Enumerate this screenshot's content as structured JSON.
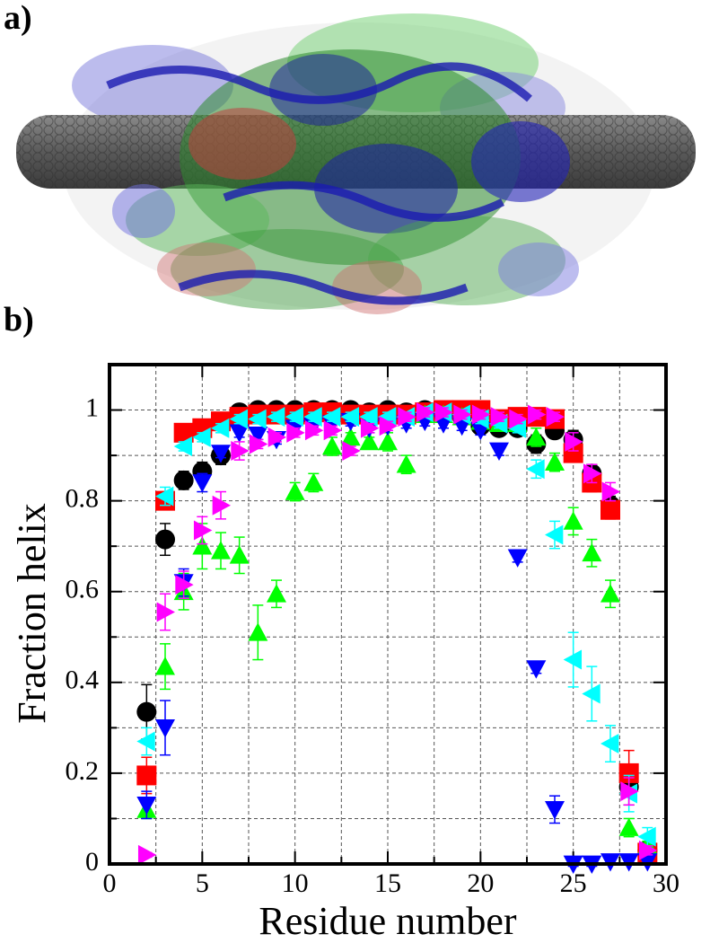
{
  "panel_a": {
    "label": "a)"
  },
  "chart_data": {
    "type": "scatter",
    "panel_label": "b)",
    "x_label": "Residue number",
    "y_label": "Fraction helix",
    "xlim": [
      0,
      30
    ],
    "ylim": [
      0,
      1.1
    ],
    "xticks": [
      0,
      5,
      10,
      15,
      20,
      25,
      30
    ],
    "yticks": [
      0,
      0.2,
      0.4,
      0.6,
      0.8,
      1
    ],
    "x_grid": [
      2.5,
      7.5,
      12.5,
      17.5,
      22.5,
      27.5
    ],
    "y_grid": [
      0.1,
      0.3,
      0.5,
      0.7,
      0.9
    ],
    "grid": true,
    "x": [
      2,
      3,
      4,
      5,
      6,
      7,
      8,
      9,
      10,
      11,
      12,
      13,
      14,
      15,
      16,
      17,
      18,
      19,
      20,
      21,
      22,
      23,
      24,
      25,
      26,
      27,
      28,
      29
    ],
    "series": [
      {
        "color": "#000000",
        "marker": "circle",
        "values": [
          0.335,
          0.715,
          0.845,
          0.865,
          0.9,
          0.995,
          1.0,
          1.0,
          1.0,
          1.0,
          1.0,
          1.0,
          0.995,
          1.0,
          0.995,
          1.0,
          0.99,
          0.985,
          0.965,
          0.96,
          0.96,
          0.925,
          0.955,
          0.935,
          0.86,
          0.79,
          0.17,
          0.03
        ],
        "errors": [
          0.06,
          0.035,
          0.02,
          0.02,
          0.02,
          0.01,
          0.005,
          0.005,
          0.005,
          0.005,
          0.005,
          0.005,
          0.005,
          0.005,
          0.005,
          0.005,
          0.01,
          0.01,
          0.01,
          0.01,
          0.01,
          0.02,
          0.015,
          0.02,
          0.02,
          0.02,
          0.04,
          0.015
        ]
      },
      {
        "color": "#ff0000",
        "marker": "square",
        "values": [
          0.195,
          0.8,
          0.95,
          0.96,
          0.975,
          0.985,
          0.99,
          0.99,
          0.99,
          0.995,
          0.995,
          0.99,
          0.99,
          0.99,
          0.99,
          0.995,
          1.0,
          1.0,
          1.0,
          0.98,
          0.985,
          0.985,
          0.98,
          0.905,
          0.84,
          0.78,
          0.2,
          0.025
        ],
        "errors": [
          0.04,
          0.02,
          0.01,
          0.01,
          0.01,
          0.01,
          0.005,
          0.005,
          0.005,
          0.005,
          0.005,
          0.005,
          0.005,
          0.005,
          0.005,
          0.005,
          0.005,
          0.005,
          0.005,
          0.01,
          0.01,
          0.01,
          0.01,
          0.02,
          0.02,
          0.02,
          0.05,
          0.015
        ]
      },
      {
        "color": "#00ff00",
        "marker": "triangle-up",
        "values": [
          0.12,
          0.435,
          0.6,
          0.7,
          0.69,
          0.68,
          0.51,
          0.595,
          0.82,
          0.84,
          0.92,
          0.94,
          0.93,
          0.93,
          0.88,
          0.99,
          0.99,
          0.985,
          0.975,
          0.97,
          0.97,
          0.94,
          0.885,
          0.755,
          0.685,
          0.595,
          0.08,
          0.04
        ],
        "errors": [
          0.02,
          0.05,
          0.04,
          0.05,
          0.04,
          0.04,
          0.06,
          0.03,
          0.02,
          0.02,
          0.02,
          0.01,
          0.01,
          0.02,
          0.02,
          0.01,
          0.01,
          0.01,
          0.01,
          0.01,
          0.01,
          0.02,
          0.02,
          0.03,
          0.03,
          0.03,
          0.02,
          0.01
        ]
      },
      {
        "color": "#0000ff",
        "marker": "triangle-down",
        "values": [
          0.13,
          0.3,
          0.62,
          0.84,
          0.905,
          0.95,
          0.945,
          0.935,
          0.96,
          0.965,
          0.97,
          0.975,
          0.96,
          0.965,
          0.97,
          0.975,
          0.97,
          0.965,
          0.955,
          0.91,
          0.675,
          0.43,
          0.12,
          0.0,
          0.0,
          0.005,
          0.005,
          0.005
        ],
        "errors": [
          0.03,
          0.06,
          0.03,
          0.02,
          0.01,
          0.01,
          0.01,
          0.01,
          0.01,
          0.01,
          0.01,
          0.01,
          0.01,
          0.01,
          0.01,
          0.01,
          0.01,
          0.01,
          0.01,
          0.01,
          0.01,
          0.01,
          0.03,
          0.005,
          0.005,
          0.005,
          0.005,
          0.005
        ]
      },
      {
        "color": "#00ffff",
        "marker": "triangle-left",
        "values": [
          0.27,
          0.81,
          0.92,
          0.94,
          0.96,
          0.98,
          0.98,
          0.985,
          0.985,
          0.985,
          0.985,
          0.985,
          0.985,
          0.985,
          0.985,
          0.995,
          0.995,
          0.99,
          0.98,
          0.97,
          0.96,
          0.87,
          0.725,
          0.45,
          0.375,
          0.265,
          0.155,
          0.06
        ],
        "errors": [
          0.03,
          0.02,
          0.01,
          0.01,
          0.01,
          0.01,
          0.01,
          0.01,
          0.01,
          0.01,
          0.01,
          0.01,
          0.01,
          0.01,
          0.01,
          0.01,
          0.01,
          0.01,
          0.01,
          0.01,
          0.01,
          0.02,
          0.03,
          0.06,
          0.06,
          0.04,
          0.04,
          0.02
        ]
      },
      {
        "color": "#ff00ff",
        "marker": "triangle-right",
        "values": [
          0.02,
          0.555,
          0.615,
          0.735,
          0.79,
          0.91,
          0.925,
          0.94,
          0.95,
          0.955,
          0.955,
          0.91,
          0.96,
          0.965,
          0.985,
          0.995,
          0.995,
          0.99,
          0.99,
          0.985,
          0.98,
          0.99,
          0.985,
          0.93,
          0.86,
          0.82,
          0.16,
          0.03
        ],
        "errors": [
          0.005,
          0.04,
          0.03,
          0.03,
          0.03,
          0.02,
          0.01,
          0.01,
          0.01,
          0.01,
          0.01,
          0.01,
          0.01,
          0.01,
          0.01,
          0.01,
          0.01,
          0.01,
          0.01,
          0.01,
          0.01,
          0.01,
          0.01,
          0.02,
          0.02,
          0.02,
          0.03,
          0.01
        ]
      }
    ]
  }
}
